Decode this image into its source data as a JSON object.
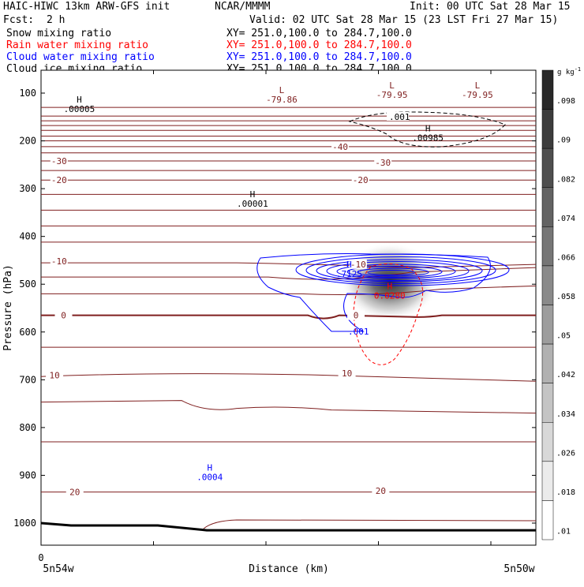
{
  "header": {
    "title": "HAIC-HIWC 13km ARW-GFS init",
    "org": "NCAR/MMMM",
    "init": "Init: 00 UTC Sat 28 Mar 15",
    "fcst_label": "Fcst:",
    "fcst_value": "2 h",
    "valid": "Valid: 02 UTC Sat 28 Mar 15 (23 LST Fri 27 Mar 15)"
  },
  "fields": [
    {
      "name": "Snow mixing ratio",
      "xy": "XY= 251.0,100.0 to 284.7,100.0",
      "color": "#000000"
    },
    {
      "name": "Rain water mixing ratio",
      "xy": "XY= 251.0,100.0 to 284.7,100.0",
      "color": "#ff0000"
    },
    {
      "name": "Cloud water mixing ratio",
      "xy": "XY= 251.0,100.0 to 284.7,100.0",
      "color": "#0000ff"
    },
    {
      "name": "Cloud ice mixing ratio",
      "xy": "XY= 251.0,100.0 to 284.7,100.0",
      "color": "#000000"
    }
  ],
  "chart_data": {
    "type": "cross-section",
    "ylabel": "Pressure (hPa)",
    "xlabel": "Distance (km)",
    "x_start_label": "5n54w",
    "x_end_label": "5n50w",
    "x_zero_label": "0",
    "yticks": [
      100,
      200,
      300,
      400,
      500,
      600,
      700,
      800,
      900,
      1000
    ],
    "ylim": [
      1050,
      75
    ],
    "xlim": [
      0,
      220
    ],
    "xticks_minor": [
      0,
      50,
      100,
      150,
      200
    ],
    "temperature_contours": {
      "color": "#7f1f1f",
      "zero_color": "#7f1f1f",
      "interval": 5,
      "levels_hpa": [
        130,
        148,
        158,
        168,
        178,
        190,
        200,
        212,
        225,
        242,
        262,
        282,
        312,
        345,
        378,
        412,
        452,
        485,
        520,
        565,
        632,
        690,
        750,
        830,
        935,
        995
      ],
      "labels": [
        {
          "text": "-40",
          "x": 133,
          "p": 212
        },
        {
          "text": "-30",
          "x": 8,
          "p": 242
        },
        {
          "text": "-30",
          "x": 152,
          "p": 245
        },
        {
          "text": "-20",
          "x": 8,
          "p": 282
        },
        {
          "text": "-20",
          "x": 142,
          "p": 282
        },
        {
          "text": "-10",
          "x": 8,
          "p": 452
        },
        {
          "text": "-10",
          "x": 141,
          "p": 458
        },
        {
          "text": "0",
          "x": 10,
          "p": 565
        },
        {
          "text": "0",
          "x": 140,
          "p": 565
        },
        {
          "text": "10",
          "x": 6,
          "p": 690
        },
        {
          "text": "10",
          "x": 136,
          "p": 686
        },
        {
          "text": "20",
          "x": 15,
          "p": 935
        },
        {
          "text": "20",
          "x": 151,
          "p": 932
        }
      ],
      "min_labels": [
        {
          "text": "L",
          "sub": "-79.86",
          "x": 107,
          "p": 100
        },
        {
          "text": "L",
          "sub": "-79.95",
          "x": 156,
          "p": 90
        },
        {
          "text": "L",
          "sub": "-79.95",
          "x": 194,
          "p": 90
        }
      ]
    },
    "snow": {
      "color": "#000000",
      "contour_value": ".001",
      "max_label": {
        "text": "H",
        "sub": ".00985",
        "x": 172,
        "p": 180
      },
      "extra_max": [
        {
          "text": "H",
          "sub": ".00005",
          "x": 17,
          "p": 120
        },
        {
          "text": "H",
          "sub": ".00001",
          "x": 94,
          "p": 318
        }
      ]
    },
    "rain": {
      "color": "#ff0000",
      "max_label": {
        "text": "H",
        "sub": "0.0280",
        "x": 155,
        "p": 510
      }
    },
    "cloud_water": {
      "color": "#0000ff",
      "contour_value": ".001",
      "max_label": {
        "text": "H",
        "sub": ".7125",
        "x": 137,
        "p": 465
      },
      "low_label": {
        "text": "H",
        "sub": ".0004",
        "x": 75,
        "p": 890
      }
    },
    "cloud_ice": {
      "colorbar_unit": "g kg",
      "colorbar_unit_sup": "-1",
      "colorbar_labels": [
        ".098",
        ".09",
        ".082",
        ".074",
        ".066",
        ".058",
        ".05",
        ".042",
        ".034",
        ".026",
        ".018",
        ".01"
      ],
      "max_value": 0.098,
      "center": {
        "x": 155,
        "p": 495
      }
    }
  }
}
